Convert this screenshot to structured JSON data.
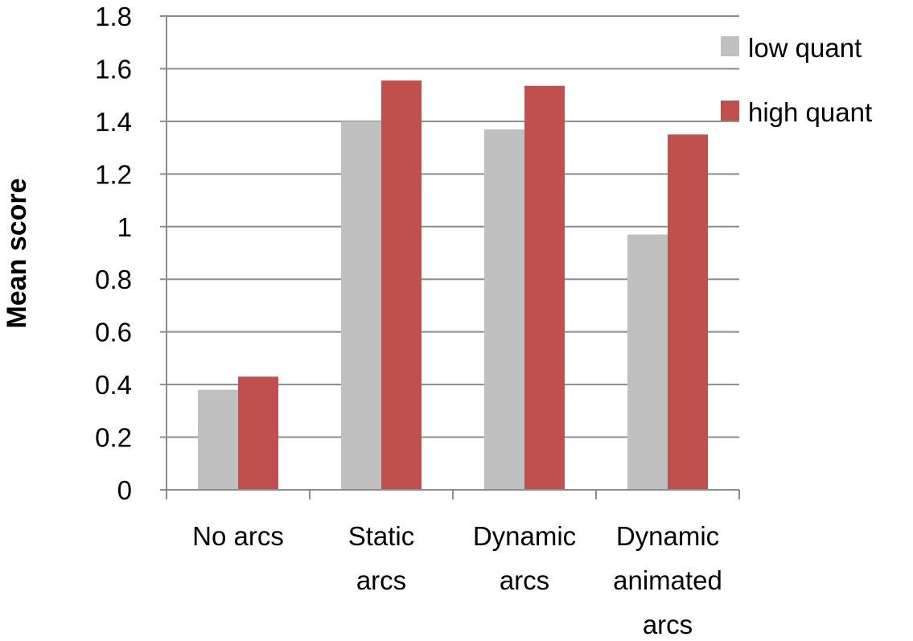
{
  "chart_data": {
    "type": "bar",
    "title": "",
    "xlabel": "",
    "ylabel": "Mean score",
    "ylim": [
      0,
      1.8
    ],
    "yticks": [
      "0",
      "0.2",
      "0.4",
      "0.6",
      "0.8",
      "1",
      "1.2",
      "1.4",
      "1.6",
      "1.8"
    ],
    "grid": true,
    "legend_position": "top-right",
    "categories": [
      [
        "No arcs"
      ],
      [
        "Static",
        "arcs"
      ],
      [
        "Dynamic",
        "arcs"
      ],
      [
        "Dynamic",
        "animated",
        "arcs"
      ]
    ],
    "series": [
      {
        "name": "low quant",
        "color": "#c0c0c0",
        "values": [
          0.38,
          1.4,
          1.37,
          0.97
        ]
      },
      {
        "name": "high quant",
        "color": "#c0504d",
        "values": [
          0.43,
          1.555,
          1.535,
          1.35
        ]
      }
    ]
  }
}
